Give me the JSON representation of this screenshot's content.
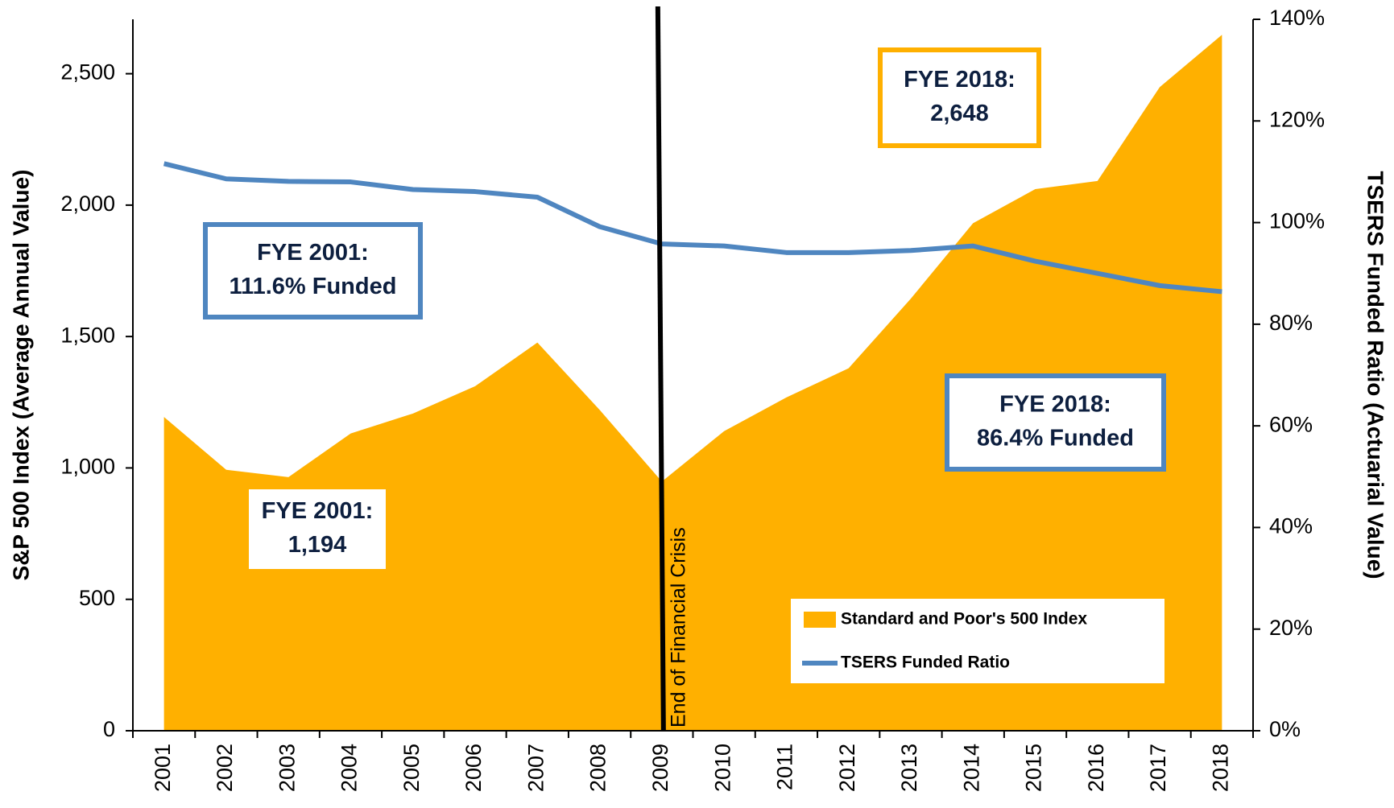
{
  "chart_data": {
    "type": "area",
    "categories": [
      "2001",
      "2002",
      "2003",
      "2004",
      "2005",
      "2006",
      "2007",
      "2008",
      "2009",
      "2010",
      "2011",
      "2012",
      "2013",
      "2014",
      "2015",
      "2016",
      "2017",
      "2018"
    ],
    "series": [
      {
        "name": "Standard and Poor's 500 Index",
        "type": "area",
        "color": "#ffb000",
        "values": [
          1194,
          993,
          965,
          1131,
          1207,
          1311,
          1477,
          1221,
          948,
          1140,
          1268,
          1379,
          1644,
          1931,
          2061,
          2092,
          2449,
          2648
        ]
      },
      {
        "name": "TSERS Funded Ratio",
        "type": "line",
        "axis": "y2",
        "color": "#4f86c0",
        "values": [
          111.6,
          108.6,
          108.1,
          108.0,
          106.5,
          106.1,
          105.0,
          99.2,
          95.8,
          95.4,
          94.1,
          94.1,
          94.5,
          95.4,
          92.4,
          90.0,
          87.6,
          86.4
        ]
      }
    ],
    "ylabel": "S&P 500 Index (Average Annual Value)",
    "y2label": "TSERS Funded Ratio (Actuarial Value)",
    "ylim": [
      0,
      2707
    ],
    "yticks": [
      0,
      500,
      {
        "value": 1000,
        "label": "1,000"
      },
      {
        "value": 1500,
        "label": "1,500"
      },
      {
        "value": 2000,
        "label": "2,000"
      },
      {
        "value": 2500,
        "label": "2,500"
      }
    ],
    "y2lim": [
      0,
      140
    ],
    "y2ticks": [
      {
        "value": 0,
        "label": "0%"
      },
      {
        "value": 20,
        "label": "20%"
      },
      {
        "value": 40,
        "label": "40%"
      },
      {
        "value": 60,
        "label": "60%"
      },
      {
        "value": 80,
        "label": "80%"
      },
      {
        "value": 100,
        "label": "100%"
      },
      {
        "value": 120,
        "label": "120%"
      },
      {
        "value": 140,
        "label": "140%"
      }
    ],
    "marker_line": {
      "category": "2009",
      "label": "End of Financial Crisis"
    },
    "annotations": [
      {
        "lines": [
          "FYE 2001:",
          "111.6% Funded"
        ],
        "border": "#4f86c0"
      },
      {
        "lines": [
          "FYE 2001:",
          "1,194"
        ],
        "border": "none"
      },
      {
        "lines": [
          "FYE 2018:",
          "2,648"
        ],
        "border": "#ffb000"
      },
      {
        "lines": [
          "FYE 2018:",
          "86.4% Funded"
        ],
        "border": "#4f86c0"
      }
    ],
    "legend": "lower right"
  }
}
